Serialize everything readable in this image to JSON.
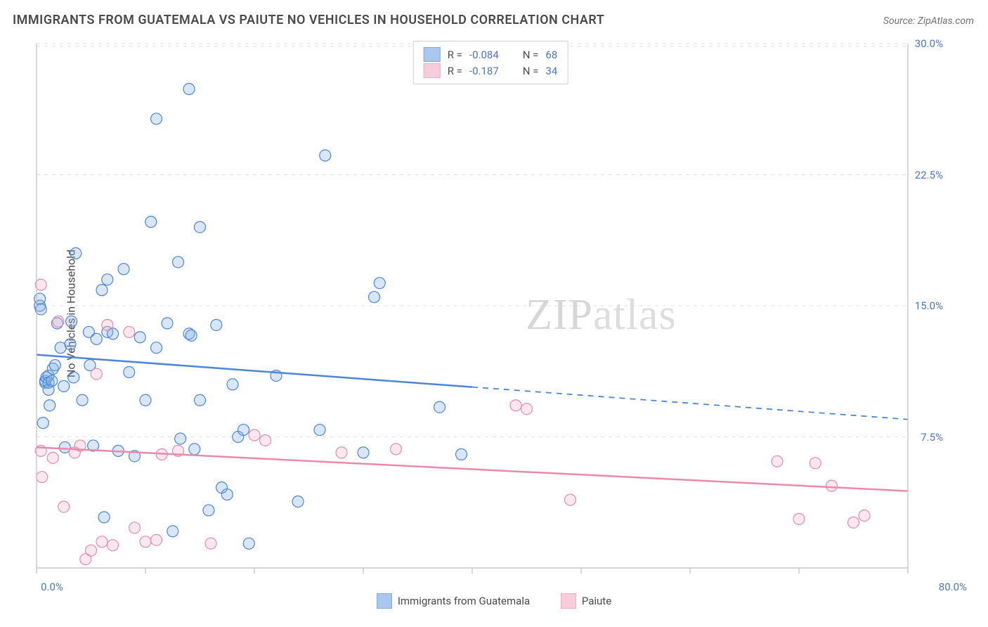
{
  "title": "IMMIGRANTS FROM GUATEMALA VS PAIUTE NO VEHICLES IN HOUSEHOLD CORRELATION CHART",
  "source_label": "Source:",
  "source_value": "ZipAtlas.com",
  "y_axis_label": "No Vehicles in Household",
  "watermark": "ZIPatlas",
  "chart": {
    "type": "scatter",
    "xlim": [
      0,
      80
    ],
    "ylim": [
      0,
      30
    ],
    "y_ticks": [
      7.5,
      15.0,
      22.5,
      30.0
    ],
    "y_tick_labels": [
      "7.5%",
      "15.0%",
      "22.5%",
      "30.0%"
    ],
    "x_ticks": [
      0,
      10,
      20,
      30,
      40,
      50,
      60,
      70,
      80
    ],
    "x_end_labels": {
      "min": "0.0%",
      "max": "80.0%"
    },
    "background_color": "#ffffff",
    "grid_color": "#e0e0e0",
    "tick_color": "#bdbdbd",
    "axis_line_color": "#bdbdbd",
    "label_text_color": "#4a4a4a",
    "tick_label_color": "#4d74c4",
    "marker_radius": 8,
    "marker_stroke_width": 1.2,
    "marker_fill_opacity": 0.32,
    "trend_line_width": 2.5,
    "trend_dash": "8,7",
    "series": [
      {
        "id": "guatemala",
        "label": "Immigrants from Guatemala",
        "color_stroke": "#4d86d6",
        "color_fill": "#87b0e6",
        "R": "-0.084",
        "N": "68",
        "trend": {
          "x1": 0,
          "y1": 12.2,
          "x2": 80,
          "y2": 8.5,
          "solid_until_x": 40
        },
        "points": [
          [
            0.3,
            15.0
          ],
          [
            0.3,
            15.4
          ],
          [
            0.4,
            14.8
          ],
          [
            0.6,
            8.3
          ],
          [
            0.8,
            10.6
          ],
          [
            0.8,
            10.7
          ],
          [
            0.9,
            10.9
          ],
          [
            1.1,
            11.0
          ],
          [
            1.1,
            10.6
          ],
          [
            1.1,
            10.2
          ],
          [
            1.2,
            9.3
          ],
          [
            1.4,
            10.7
          ],
          [
            1.5,
            11.4
          ],
          [
            1.7,
            11.6
          ],
          [
            1.9,
            14.0
          ],
          [
            2.2,
            12.6
          ],
          [
            2.5,
            10.4
          ],
          [
            2.6,
            6.9
          ],
          [
            3.1,
            12.8
          ],
          [
            3.2,
            14.1
          ],
          [
            3.4,
            10.9
          ],
          [
            3.6,
            18.0
          ],
          [
            4.2,
            9.6
          ],
          [
            4.8,
            13.5
          ],
          [
            4.9,
            11.6
          ],
          [
            5.2,
            7.0
          ],
          [
            5.5,
            13.1
          ],
          [
            6.0,
            15.9
          ],
          [
            6.2,
            2.9
          ],
          [
            6.5,
            16.5
          ],
          [
            6.5,
            13.5
          ],
          [
            7.0,
            13.4
          ],
          [
            7.5,
            6.7
          ],
          [
            8.0,
            17.1
          ],
          [
            8.5,
            11.2
          ],
          [
            9.0,
            6.4
          ],
          [
            9.5,
            13.2
          ],
          [
            10.0,
            9.6
          ],
          [
            10.5,
            19.8
          ],
          [
            11.0,
            12.6
          ],
          [
            11.0,
            25.7
          ],
          [
            12.0,
            14.0
          ],
          [
            12.5,
            2.1
          ],
          [
            13.0,
            17.5
          ],
          [
            13.2,
            7.4
          ],
          [
            14.0,
            13.4
          ],
          [
            14.2,
            13.3
          ],
          [
            14.0,
            27.4
          ],
          [
            14.5,
            6.8
          ],
          [
            15.0,
            19.5
          ],
          [
            15.0,
            9.6
          ],
          [
            15.8,
            3.3
          ],
          [
            16.5,
            13.9
          ],
          [
            17.0,
            4.6
          ],
          [
            17.5,
            4.2
          ],
          [
            18.0,
            10.5
          ],
          [
            18.5,
            7.5
          ],
          [
            19.0,
            7.9
          ],
          [
            19.5,
            1.4
          ],
          [
            22.0,
            11.0
          ],
          [
            24.0,
            3.8
          ],
          [
            26.0,
            7.9
          ],
          [
            26.5,
            23.6
          ],
          [
            30.0,
            6.6
          ],
          [
            31.0,
            15.5
          ],
          [
            37.0,
            9.2
          ],
          [
            39.0,
            6.5
          ],
          [
            31.5,
            16.3
          ]
        ]
      },
      {
        "id": "paiute",
        "label": "Paiute",
        "color_stroke": "#e98aac",
        "color_fill": "#f4b8cc",
        "R": "-0.187",
        "N": "34",
        "trend": {
          "x1": 0,
          "y1": 6.9,
          "x2": 80,
          "y2": 4.4,
          "solid_until_x": 80
        },
        "points": [
          [
            0.4,
            16.2
          ],
          [
            0.4,
            6.7
          ],
          [
            0.5,
            5.2
          ],
          [
            1.5,
            6.3
          ],
          [
            2.0,
            14.1
          ],
          [
            2.5,
            3.5
          ],
          [
            3.5,
            6.6
          ],
          [
            4.0,
            7.0
          ],
          [
            4.5,
            0.5
          ],
          [
            5.0,
            1.0
          ],
          [
            5.5,
            11.1
          ],
          [
            6.0,
            1.5
          ],
          [
            6.5,
            13.9
          ],
          [
            7.0,
            1.3
          ],
          [
            8.5,
            13.5
          ],
          [
            9.0,
            2.3
          ],
          [
            10.0,
            1.5
          ],
          [
            11.0,
            1.6
          ],
          [
            11.5,
            6.5
          ],
          [
            13.0,
            6.7
          ],
          [
            16.0,
            1.4
          ],
          [
            20.0,
            7.6
          ],
          [
            21.0,
            7.3
          ],
          [
            28.0,
            6.6
          ],
          [
            33.0,
            6.8
          ],
          [
            44.0,
            9.3
          ],
          [
            45.0,
            9.1
          ],
          [
            49.0,
            3.9
          ],
          [
            68.0,
            6.1
          ],
          [
            70.0,
            2.8
          ],
          [
            71.5,
            6.0
          ],
          [
            73.0,
            4.7
          ],
          [
            75.0,
            2.6
          ],
          [
            76.0,
            3.0
          ]
        ]
      }
    ]
  }
}
